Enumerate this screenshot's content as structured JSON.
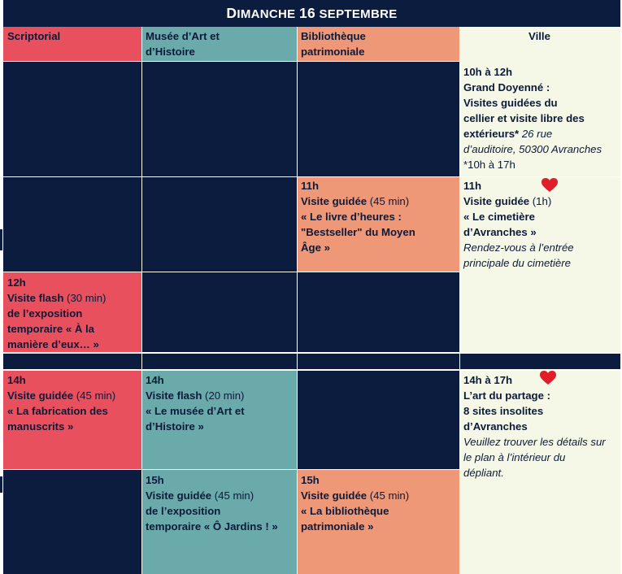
{
  "title": {
    "first": "D",
    "rest": "IMANCHE",
    "num": "16",
    "month": "SEPTEMBRE"
  },
  "columns": [
    {
      "line1": "Scriptorial",
      "line2": ""
    },
    {
      "line1": "Musée d’Art et",
      "line2": "d’Histoire"
    },
    {
      "line1": "Bibliothèque",
      "line2": "patrimoniale"
    },
    {
      "line1": "Ville",
      "line2": ""
    }
  ],
  "colors": {
    "navy": "#0c1c3e",
    "scriptorial": "#e8505e",
    "musee": "#6aaaaa",
    "bibliotheque": "#ee9877",
    "ville": "#f5f8e6",
    "heart": "#e11d2a"
  },
  "icons": {
    "favorite": "heart-icon"
  },
  "events": {
    "ville_10h": {
      "time": "10h à 12h",
      "l1": "Grand Doyenné :",
      "l2": "Visites guidées du",
      "l3": "cellier et visite libre des",
      "l4": "extérieurs*",
      "l4_italic": " 26 rue",
      "l5": "d’auditoire, 50300 Avranches",
      "l6": "*10h à 17h"
    },
    "bib_11h": {
      "time": "11h",
      "title": "Visite  guidée",
      "duration": " (45 min)",
      "l1": "« Le livre d’heures :",
      "l2": "\"Bestseller\" du Moyen",
      "l3": "Âge »"
    },
    "ville_11h": {
      "time": "11h",
      "title": "Visite guidée",
      "duration": " (1h)",
      "l1": "« Le cimetière",
      "l2": "d’Avranches »",
      "l3": "Rendez-vous à l’entrée",
      "l4": "principale du cimetière"
    },
    "scrip_12h": {
      "time": "12h",
      "title": "Visite flash",
      "duration": " (30 min)",
      "l1": "de l’exposition",
      "l2": "temporaire « À la",
      "l3": "manière d’eux… »"
    },
    "scrip_14h": {
      "time": "14h",
      "title": "Visite guidée",
      "duration": " (45 min)",
      "l1": "« La fabrication des",
      "l2": "manuscrits »"
    },
    "musee_14h": {
      "time": "14h",
      "title": "Visite flash",
      "duration": " (20 min)",
      "l1": "« Le musée d’Art et",
      "l2": "d’Histoire »"
    },
    "ville_14h": {
      "time": "14h à 17h",
      "l1": "L’art du partage :",
      "l2": "8 sites insolites",
      "l3": "d’Avranches",
      "l4": "Veuillez trouver les détails sur",
      "l5": "le plan à l’intérieur du",
      "l6": "dépliant."
    },
    "musee_15h": {
      "time": "15h",
      "title": "Visite guidée",
      "duration": " (45 min)",
      "l1": "de l’exposition",
      "l2": "temporaire « Ô Jardins ! »"
    },
    "bib_15h": {
      "time": "15h",
      "title": "Visite  guidée",
      "duration": " (45 min)",
      "l1": "« La bibliothèque",
      "l2": "patrimoniale »"
    }
  }
}
